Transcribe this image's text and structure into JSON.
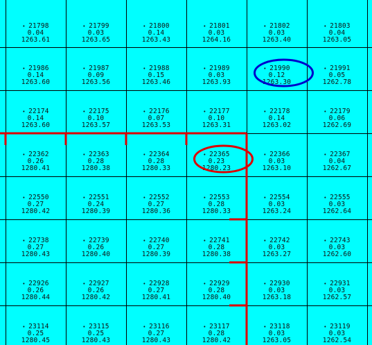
{
  "map": {
    "colors": {
      "background": "#00ffff",
      "grid_lines": "#000000",
      "boundary": "#dd0000",
      "highlight_blue": "#0000cc",
      "highlight_red": "#dd0000",
      "text": "#111111"
    },
    "highlighted_cells": [
      {
        "id": "21990",
        "color": "blue"
      },
      {
        "id": "22365",
        "color": "red"
      }
    ],
    "rows": [
      [
        {
          "id": "21798",
          "v1": "0.04",
          "v2": "1263.61"
        },
        {
          "id": "21799",
          "v1": "0.03",
          "v2": "1263.65"
        },
        {
          "id": "21800",
          "v1": "0.14",
          "v2": "1263.43"
        },
        {
          "id": "21801",
          "v1": "0.03",
          "v2": "1264.16"
        },
        {
          "id": "21802",
          "v1": "0.03",
          "v2": "1263.40"
        },
        {
          "id": "21803",
          "v1": "0.04",
          "v2": "1263.05"
        }
      ],
      [
        {
          "id": "21986",
          "v1": "0.14",
          "v2": "1263.60"
        },
        {
          "id": "21987",
          "v1": "0.09",
          "v2": "1263.56"
        },
        {
          "id": "21988",
          "v1": "0.15",
          "v2": "1263.46"
        },
        {
          "id": "21989",
          "v1": "0.03",
          "v2": "1263.93"
        },
        {
          "id": "21990",
          "v1": "0.12",
          "v2": "1263.30"
        },
        {
          "id": "21991",
          "v1": "0.05",
          "v2": "1262.78"
        }
      ],
      [
        {
          "id": "22174",
          "v1": "0.14",
          "v2": "1263.60"
        },
        {
          "id": "22175",
          "v1": "0.10",
          "v2": "1263.57"
        },
        {
          "id": "22176",
          "v1": "0.07",
          "v2": "1263.53"
        },
        {
          "id": "22177",
          "v1": "0.10",
          "v2": "1263.31"
        },
        {
          "id": "22178",
          "v1": "0.14",
          "v2": "1263.02"
        },
        {
          "id": "22179",
          "v1": "0.06",
          "v2": "1262.69"
        }
      ],
      [
        {
          "id": "22362",
          "v1": "0.26",
          "v2": "1280.41"
        },
        {
          "id": "22363",
          "v1": "0.28",
          "v2": "1280.38"
        },
        {
          "id": "22364",
          "v1": "0.28",
          "v2": "1280.33"
        },
        {
          "id": "22365",
          "v1": "0.23",
          "v2": "1280.23"
        },
        {
          "id": "22366",
          "v1": "0.03",
          "v2": "1263.10"
        },
        {
          "id": "22367",
          "v1": "0.04",
          "v2": "1262.67"
        }
      ],
      [
        {
          "id": "22550",
          "v1": "0.27",
          "v2": "1280.42"
        },
        {
          "id": "22551",
          "v1": "0.24",
          "v2": "1280.39"
        },
        {
          "id": "22552",
          "v1": "0.27",
          "v2": "1280.36"
        },
        {
          "id": "22553",
          "v1": "0.28",
          "v2": "1280.33"
        },
        {
          "id": "22554",
          "v1": "0.03",
          "v2": "1263.24"
        },
        {
          "id": "22555",
          "v1": "0.03",
          "v2": "1262.64"
        }
      ],
      [
        {
          "id": "22738",
          "v1": "0.27",
          "v2": "1280.43"
        },
        {
          "id": "22739",
          "v1": "0.26",
          "v2": "1280.40"
        },
        {
          "id": "22740",
          "v1": "0.27",
          "v2": "1280.39"
        },
        {
          "id": "22741",
          "v1": "0.28",
          "v2": "1280.38"
        },
        {
          "id": "22742",
          "v1": "0.03",
          "v2": "1263.27"
        },
        {
          "id": "22743",
          "v1": "0.03",
          "v2": "1262.60"
        }
      ],
      [
        {
          "id": "22926",
          "v1": "0.26",
          "v2": "1280.44"
        },
        {
          "id": "22927",
          "v1": "0.26",
          "v2": "1280.42"
        },
        {
          "id": "22928",
          "v1": "0.27",
          "v2": "1280.41"
        },
        {
          "id": "22929",
          "v1": "0.28",
          "v2": "1280.40"
        },
        {
          "id": "22930",
          "v1": "0.03",
          "v2": "1263.18"
        },
        {
          "id": "22931",
          "v1": "0.03",
          "v2": "1262.57"
        }
      ],
      [
        {
          "id": "23114",
          "v1": "0.25",
          "v2": "1280.45"
        },
        {
          "id": "23115",
          "v1": "0.25",
          "v2": "1280.43"
        },
        {
          "id": "23116",
          "v1": "0.27",
          "v2": "1280.43"
        },
        {
          "id": "23117",
          "v1": "0.28",
          "v2": "1280.42"
        },
        {
          "id": "23118",
          "v1": "0.03",
          "v2": "1263.05"
        },
        {
          "id": "23119",
          "v1": "0.03",
          "v2": "1262.54"
        }
      ]
    ]
  }
}
